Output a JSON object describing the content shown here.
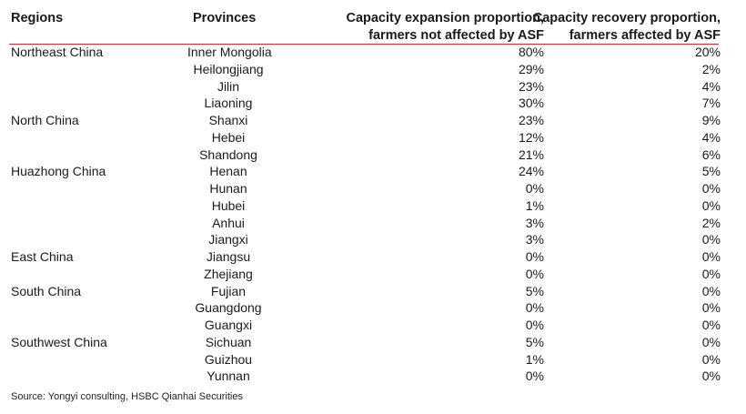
{
  "headers": {
    "region": "Regions",
    "province": "Provinces",
    "expansion_line1": "Capacity expansion proportion,",
    "expansion_line2": "farmers not affected by ASF",
    "recovery_line1": "Capacity recovery proportion,",
    "recovery_line2": "farmers affected by ASF"
  },
  "rows": [
    {
      "region": "Northeast China",
      "province": "Inner Mongolia",
      "expansion": "80%",
      "recovery": "20%"
    },
    {
      "region": "",
      "province": "Heilongjiang",
      "expansion": "29%",
      "recovery": "2%"
    },
    {
      "region": "",
      "province": "Jilin",
      "expansion": "23%",
      "recovery": "4%"
    },
    {
      "region": "",
      "province": "Liaoning",
      "expansion": "30%",
      "recovery": "7%"
    },
    {
      "region": "North China",
      "province": "Shanxi",
      "expansion": "23%",
      "recovery": "9%"
    },
    {
      "region": "",
      "province": "Hebei",
      "expansion": "12%",
      "recovery": "4%"
    },
    {
      "region": "",
      "province": "Shandong",
      "expansion": "21%",
      "recovery": "6%"
    },
    {
      "region": "Huazhong China",
      "province": "Henan",
      "expansion": "24%",
      "recovery": "5%"
    },
    {
      "region": "",
      "province": "Hunan",
      "expansion": "0%",
      "recovery": "0%"
    },
    {
      "region": "",
      "province": "Hubei",
      "expansion": "1%",
      "recovery": "0%"
    },
    {
      "region": "",
      "province": "Anhui",
      "expansion": "3%",
      "recovery": "2%"
    },
    {
      "region": "",
      "province": "Jiangxi",
      "expansion": "3%",
      "recovery": "0%"
    },
    {
      "region": "East China",
      "province": "Jiangsu",
      "expansion": "0%",
      "recovery": "0%"
    },
    {
      "region": "",
      "province": "Zhejiang",
      "expansion": "0%",
      "recovery": "0%"
    },
    {
      "region": "South China",
      "province": "Fujian",
      "expansion": "5%",
      "recovery": "0%"
    },
    {
      "region": "",
      "province": "Guangdong",
      "expansion": "0%",
      "recovery": "0%"
    },
    {
      "region": "",
      "province": "Guangxi",
      "expansion": "0%",
      "recovery": "0%"
    },
    {
      "region": "Southwest China",
      "province": "Sichuan",
      "expansion": "5%",
      "recovery": "0%"
    },
    {
      "region": "",
      "province": "Guizhou",
      "expansion": "1%",
      "recovery": "0%"
    },
    {
      "region": "",
      "province": "Yunnan",
      "expansion": "0%",
      "recovery": "0%"
    }
  ],
  "source": "Source: Yongyi consulting, HSBC Qianhai Securities",
  "colors": {
    "rule": "#e3262f",
    "text": "#1a1a1a"
  }
}
